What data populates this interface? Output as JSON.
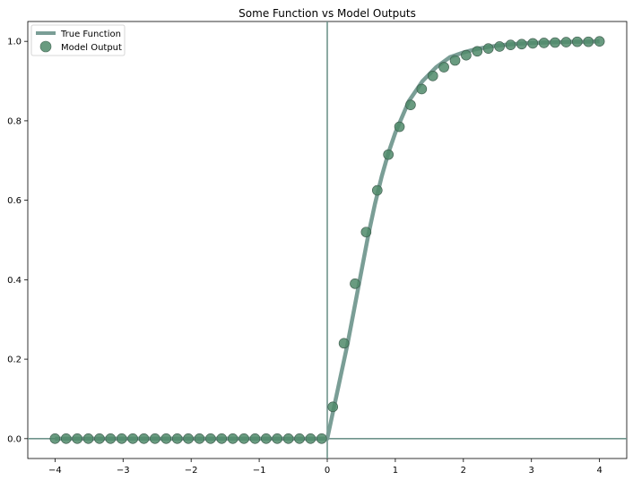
{
  "chart_data": {
    "type": "line",
    "title": "Some Function vs Model Outputs",
    "xlabel": "",
    "ylabel": "",
    "xlim": [
      -4.4,
      4.4
    ],
    "ylim": [
      -0.05,
      1.05
    ],
    "x_ticks": [
      -4,
      -3,
      -2,
      -1,
      0,
      1,
      2,
      3,
      4
    ],
    "x_tick_labels": [
      "−4",
      "−3",
      "−2",
      "−1",
      "0",
      "1",
      "2",
      "3",
      "4"
    ],
    "y_ticks": [
      0.0,
      0.2,
      0.4,
      0.6,
      0.8,
      1.0
    ],
    "y_tick_labels": [
      "0.0",
      "0.2",
      "0.4",
      "0.6",
      "0.8",
      "1.0"
    ],
    "reference_lines": {
      "x": 0,
      "y": 0
    },
    "grid": false,
    "legend_position": "top-left",
    "series": [
      {
        "name": "True Function",
        "style": "line",
        "color": "#7a9e96",
        "x": [
          -4.0,
          -0.1,
          0.0,
          0.1,
          0.2,
          0.3,
          0.4,
          0.5,
          0.6,
          0.7,
          0.8,
          0.9,
          1.0,
          1.2,
          1.4,
          1.6,
          1.8,
          2.0,
          2.2,
          2.4,
          2.6,
          2.8,
          3.0,
          3.2,
          3.4,
          3.6,
          3.8,
          4.0
        ],
        "y": [
          0.0,
          0.0,
          0.0,
          0.08,
          0.16,
          0.24,
          0.33,
          0.42,
          0.51,
          0.59,
          0.66,
          0.72,
          0.77,
          0.85,
          0.9,
          0.935,
          0.96,
          0.972,
          0.981,
          0.987,
          0.991,
          0.994,
          0.996,
          0.997,
          0.998,
          0.999,
          0.999,
          1.0
        ]
      },
      {
        "name": "Model Output",
        "style": "scatter",
        "color": "#4f8a6a",
        "x": [
          -4.0,
          -3.837,
          -3.673,
          -3.51,
          -3.347,
          -3.184,
          -3.02,
          -2.857,
          -2.694,
          -2.531,
          -2.367,
          -2.204,
          -2.041,
          -1.878,
          -1.714,
          -1.551,
          -1.388,
          -1.224,
          -1.061,
          -0.898,
          -0.735,
          -0.571,
          -0.408,
          -0.245,
          -0.082,
          0.082,
          0.245,
          0.408,
          0.571,
          0.735,
          0.898,
          1.061,
          1.224,
          1.388,
          1.551,
          1.714,
          1.878,
          2.041,
          2.204,
          2.367,
          2.531,
          2.694,
          2.857,
          3.02,
          3.184,
          3.347,
          3.51,
          3.673,
          3.837,
          4.0
        ],
        "y": [
          0.0,
          0.0,
          0.0,
          0.0,
          0.0,
          0.0,
          0.0,
          0.0,
          0.0,
          0.0,
          0.0,
          0.0,
          0.0,
          0.0,
          0.0,
          0.0,
          0.0,
          0.0,
          0.0,
          0.0,
          0.0,
          0.0,
          0.0,
          0.0,
          0.0,
          0.08,
          0.24,
          0.39,
          0.52,
          0.625,
          0.715,
          0.785,
          0.84,
          0.88,
          0.913,
          0.935,
          0.952,
          0.965,
          0.975,
          0.982,
          0.987,
          0.991,
          0.993,
          0.995,
          0.996,
          0.997,
          0.998,
          0.999,
          0.999,
          1.0
        ]
      }
    ]
  }
}
